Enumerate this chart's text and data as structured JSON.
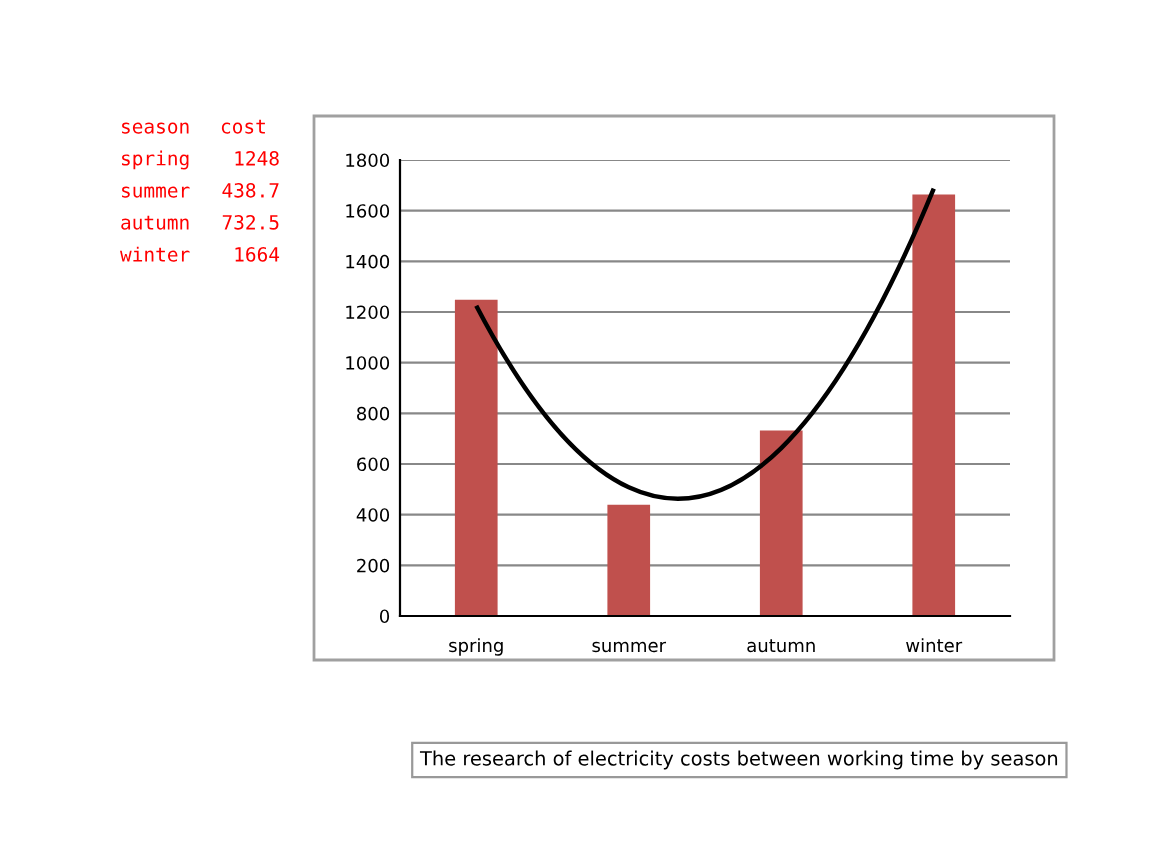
{
  "chart_data": [
    {
      "type": "other",
      "annotations": [
        "season",
        "cost"
      ],
      "categories": [
        "spring",
        "summer",
        "autumn",
        "winter"
      ],
      "values": [
        1248,
        438.7,
        732.5,
        1664
      ],
      "data_labels": true
    },
    {
      "type": "bar",
      "title": "The research of electricity costs between working time by season",
      "categories": [
        "spring",
        "summer",
        "autumn",
        "winter"
      ],
      "series": [
        {
          "type": "bar",
          "color": "#c0504d",
          "values": [
            1248,
            438.7,
            732.5,
            1664
          ]
        },
        {
          "type": "line",
          "color": "#000000",
          "values": [
            1225,
            508,
            663,
            1687
          ]
        }
      ],
      "ylim": [
        0,
        1800
      ],
      "yticks": [
        0,
        200,
        400,
        600,
        800,
        1000,
        1200,
        1400,
        1600,
        1800
      ],
      "grid": "y"
    }
  ]
}
